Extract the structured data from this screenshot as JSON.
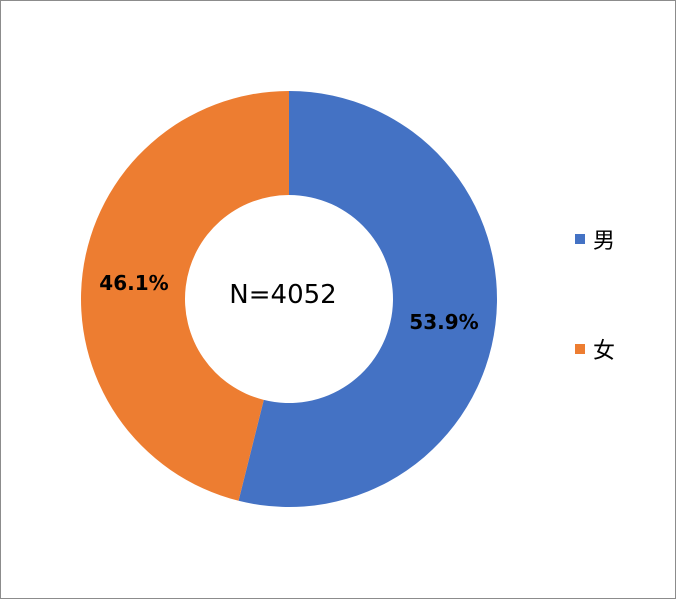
{
  "chart_data": {
    "type": "pie",
    "variant": "donut",
    "center_label": "N=4052",
    "slices": [
      {
        "name": "男",
        "value": 53.9,
        "label": "53.9%",
        "color": "#4472C4"
      },
      {
        "name": "女",
        "value": 46.1,
        "label": "46.1%",
        "color": "#ED7D31"
      }
    ],
    "legend_position": "right"
  }
}
